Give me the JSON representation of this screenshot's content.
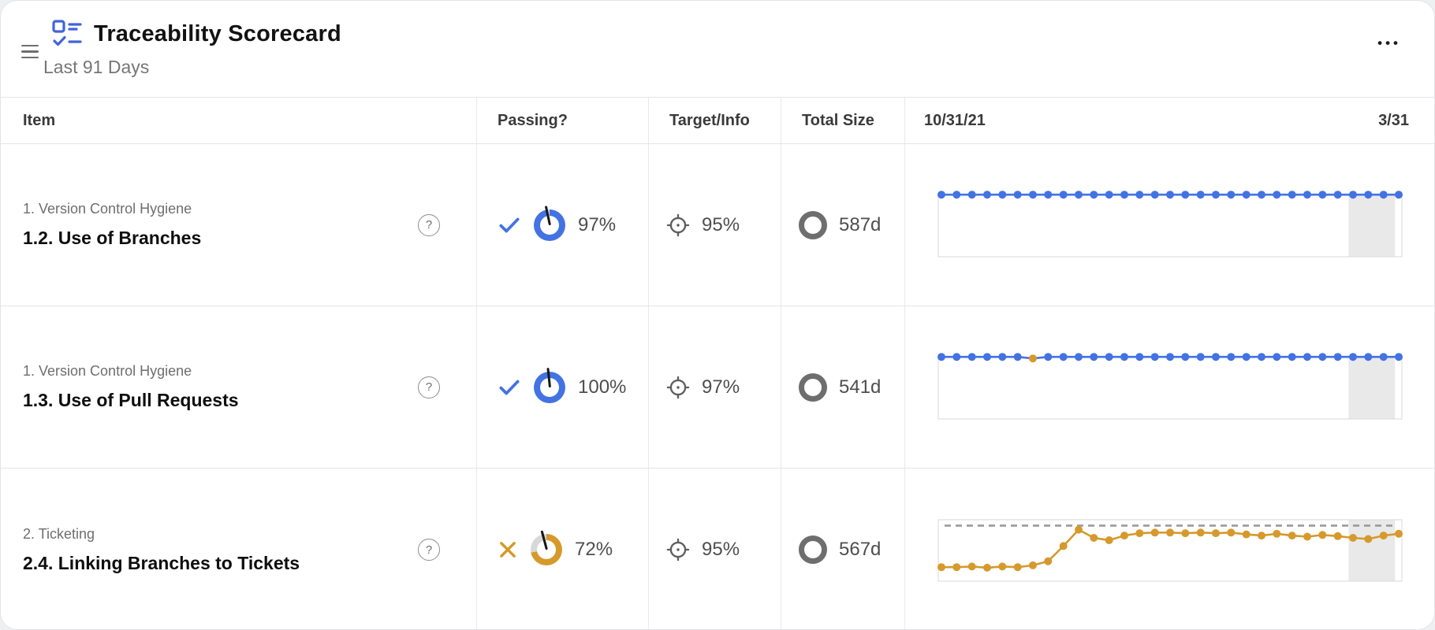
{
  "header": {
    "title": "Traceability Scorecard",
    "subtitle": "Last 91 Days",
    "more": "•••"
  },
  "columns": {
    "item": "Item",
    "passing": "Passing?",
    "target_info": "Target/Info",
    "total_size": "Total Size",
    "date_start": "10/31/21",
    "date_end": "3/31"
  },
  "icons": {
    "help": "?"
  },
  "colors": {
    "brand": "#4064DD",
    "blue": "#4372E3",
    "orange": "#D6992C",
    "track": "#D8D8D8",
    "band": "#E9E9E9",
    "grid": "#DEDEDE",
    "target_dash": "#9A9A9A",
    "ring_gray": "#6E6E6E"
  },
  "rows": [
    {
      "category": "1. Version Control Hygiene",
      "title": "1.2. Use of Branches",
      "passing": true,
      "score": "97%",
      "score_pct": 97,
      "needle_deg": -12,
      "target": "95%",
      "total_size": "587d"
    },
    {
      "category": "1. Version Control Hygiene",
      "title": "1.3. Use of Pull Requests",
      "passing": true,
      "score": "100%",
      "score_pct": 100,
      "needle_deg": -6,
      "target": "97%",
      "total_size": "541d"
    },
    {
      "category": "2. Ticketing",
      "title": "2.4. Linking Branches to Tickets",
      "passing": false,
      "score": "72%",
      "score_pct": 72,
      "needle_deg": -15,
      "target": "95%",
      "total_size": "567d"
    }
  ],
  "chart_data": [
    {
      "type": "line",
      "title": "Use of Branches trend",
      "color": "#4372E3",
      "x_start_label": "10/31/21",
      "x_end_label": "3/31",
      "ylim": [
        0,
        96
      ],
      "band": [
        0.885,
        0.985
      ],
      "target_line": null,
      "values": [
        97,
        97,
        97,
        97,
        97,
        97,
        97,
        97,
        97,
        97,
        97,
        97,
        97,
        97,
        97,
        97,
        97,
        97,
        97,
        97,
        97,
        97,
        97,
        97,
        97,
        97,
        97,
        97,
        97,
        97,
        97
      ]
    },
    {
      "type": "line",
      "title": "Use of Pull Requests trend",
      "color": "#4372E3",
      "x_start_label": "10/31/21",
      "x_end_label": "3/31",
      "ylim": [
        0,
        99
      ],
      "band": [
        0.885,
        0.985
      ],
      "target_line": null,
      "point_overrides": {
        "6": "#D6992C"
      },
      "values": [
        100,
        100,
        100,
        100,
        100,
        100,
        97.5,
        100,
        100,
        100,
        100,
        100,
        100,
        100,
        100,
        100,
        100,
        100,
        100,
        100,
        100,
        100,
        100,
        100,
        100,
        100,
        100,
        100,
        100,
        100,
        100
      ]
    },
    {
      "type": "line",
      "title": "Linking Branches to Tickets trend",
      "color": "#D6992C",
      "x_start_label": "10/31/21",
      "x_end_label": "3/31",
      "ylim": [
        0,
        105
      ],
      "band": [
        0.885,
        0.985
      ],
      "target_line": 95,
      "values": [
        24,
        24,
        25,
        23,
        25,
        24,
        27,
        34,
        60,
        88,
        74,
        70,
        78,
        82,
        83,
        83,
        82,
        83,
        82,
        83,
        80,
        78,
        81,
        78,
        76,
        79,
        77,
        74,
        72,
        78,
        81
      ]
    }
  ]
}
